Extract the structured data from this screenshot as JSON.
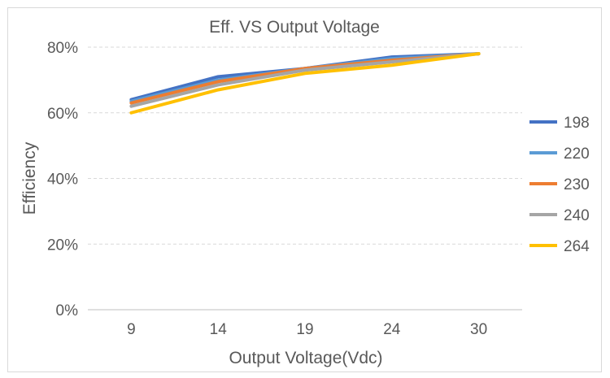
{
  "chart_data": {
    "type": "line",
    "title": "Eff. VS Output Voltage",
    "xlabel": "Output Voltage(Vdc)",
    "ylabel": "Efficiency",
    "categories": [
      "9",
      "14",
      "19",
      "24",
      "30"
    ],
    "ylim": [
      0,
      80
    ],
    "yticks": [
      0,
      20,
      40,
      60,
      80
    ],
    "ytick_labels": [
      "0%",
      "20%",
      "40%",
      "60%",
      "80%"
    ],
    "grid": true,
    "legend_position": "right",
    "series": [
      {
        "name": "198",
        "color": "#4472c4",
        "values": [
          64,
          71,
          73.5,
          77,
          78
        ]
      },
      {
        "name": "220",
        "color": "#5b9bd5",
        "values": [
          63.5,
          70,
          73.5,
          76.5,
          78
        ]
      },
      {
        "name": "230",
        "color": "#ed7d31",
        "values": [
          63,
          69.5,
          73.5,
          76,
          78
        ]
      },
      {
        "name": "240",
        "color": "#a5a5a5",
        "values": [
          62,
          68.5,
          73,
          75.5,
          78
        ]
      },
      {
        "name": "264",
        "color": "#ffc000",
        "values": [
          60,
          67,
          72,
          74.5,
          78
        ]
      }
    ]
  }
}
